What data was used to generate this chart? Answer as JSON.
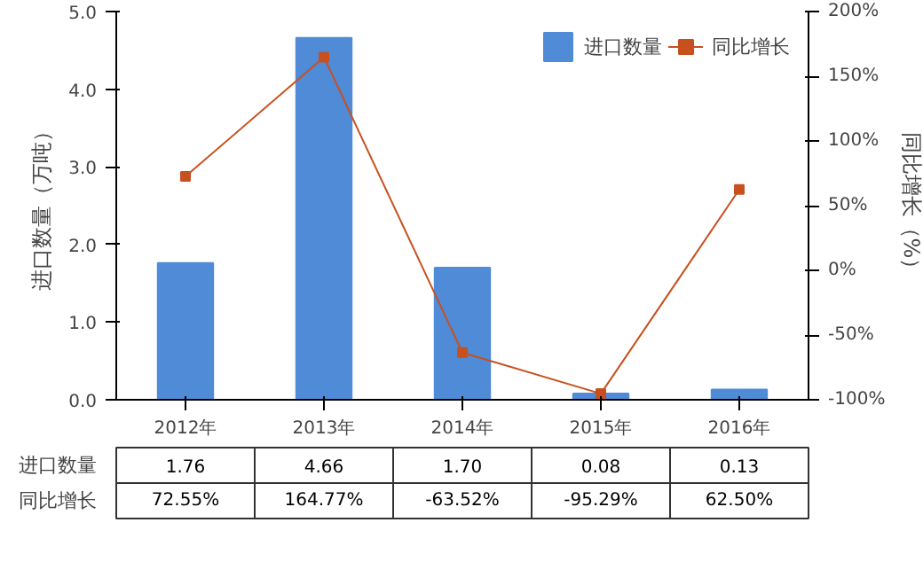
{
  "chart_data": {
    "type": "bar",
    "categories": [
      "2012年",
      "2013年",
      "2014年",
      "2015年",
      "2016年"
    ],
    "ylabel": "进口数量（万吨）",
    "y2label": "同比增长（%）",
    "ylim": [
      0,
      5
    ],
    "yticks": [
      {
        "value": 0,
        "label": "0.0"
      },
      {
        "value": 1,
        "label": "1.0"
      },
      {
        "value": 2,
        "label": "2.0"
      },
      {
        "value": 3,
        "label": "3.0"
      },
      {
        "value": 4,
        "label": "4.0"
      },
      {
        "value": 5,
        "label": "5.0"
      }
    ],
    "y2lim": [
      -100,
      200
    ],
    "y2ticks": [
      {
        "value": -100,
        "label": "-100%"
      },
      {
        "value": -50,
        "label": "-50%"
      },
      {
        "value": 0,
        "label": "0%"
      },
      {
        "value": 50,
        "label": "50%"
      },
      {
        "value": 100,
        "label": "100%"
      },
      {
        "value": 150,
        "label": "150%"
      },
      {
        "value": 200,
        "label": "200%"
      }
    ],
    "legend": "top right",
    "grid": false,
    "marker": "square",
    "series": [
      {
        "name": "进口数量",
        "color": "#4f8bd6",
        "values": [
          1.76,
          4.66,
          1.7,
          0.08,
          0.13
        ],
        "value_labels": [
          "1.76",
          "4.66",
          "1.70",
          "0.08",
          "0.13"
        ]
      },
      {
        "name": "同比增长",
        "type": "line",
        "axis": "y2",
        "color": "#c8501e",
        "values": [
          72.55,
          164.77,
          -63.52,
          -95.29,
          62.5
        ],
        "value_labels": [
          "72.55%",
          "164.77%",
          "-63.52%",
          "-95.29%",
          "62.50%"
        ]
      }
    ]
  }
}
